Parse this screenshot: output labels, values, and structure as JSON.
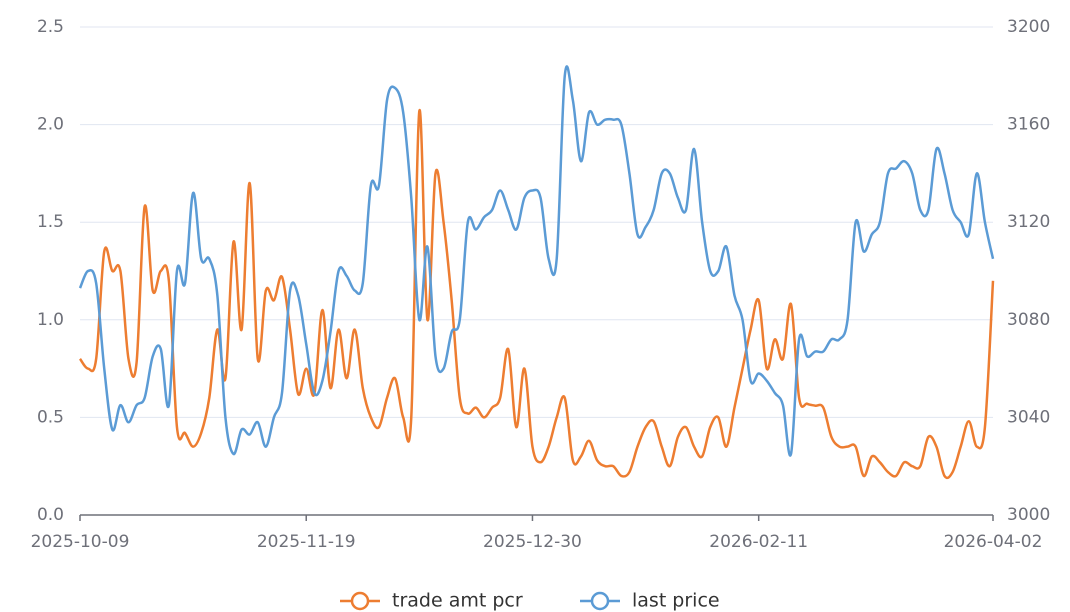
{
  "chart_data": {
    "type": "line",
    "categories": [
      "2025-10-09",
      null,
      null,
      null,
      null,
      null,
      null,
      null,
      null,
      null,
      null,
      null,
      null,
      null,
      null,
      null,
      null,
      null,
      null,
      null,
      null,
      null,
      null,
      null,
      null,
      null,
      null,
      null,
      "2025-11-19",
      null,
      null,
      null,
      null,
      null,
      null,
      null,
      null,
      null,
      null,
      null,
      null,
      null,
      null,
      null,
      null,
      null,
      null,
      null,
      null,
      null,
      null,
      null,
      null,
      null,
      null,
      null,
      "2025-12-30",
      null,
      null,
      null,
      null,
      null,
      null,
      null,
      null,
      null,
      null,
      null,
      null,
      null,
      null,
      null,
      null,
      null,
      null,
      null,
      null,
      null,
      null,
      null,
      null,
      null,
      null,
      null,
      "2026-02-11",
      null,
      null,
      null,
      null,
      null,
      null,
      null,
      null,
      null,
      null,
      null,
      null,
      null,
      null,
      null,
      null,
      null,
      null,
      null,
      null,
      null,
      null,
      null,
      null,
      null,
      null,
      null,
      null,
      "2026-04-02"
    ],
    "series": [
      {
        "name": "trade amt pcr",
        "color": "#ed7d31",
        "axis": "y",
        "values": [
          0.8,
          0.75,
          0.8,
          1.35,
          1.25,
          1.25,
          0.8,
          0.78,
          1.58,
          1.15,
          1.25,
          1.2,
          0.45,
          0.42,
          0.35,
          0.42,
          0.6,
          0.95,
          0.7,
          1.4,
          0.95,
          1.7,
          0.8,
          1.15,
          1.1,
          1.22,
          0.95,
          0.62,
          0.75,
          0.62,
          1.05,
          0.65,
          0.95,
          0.7,
          0.95,
          0.65,
          0.5,
          0.45,
          0.6,
          0.7,
          0.5,
          0.5,
          2.07,
          1.0,
          1.75,
          1.5,
          1.1,
          0.6,
          0.52,
          0.55,
          0.5,
          0.55,
          0.6,
          0.85,
          0.45,
          0.75,
          0.35,
          0.27,
          0.35,
          0.5,
          0.6,
          0.28,
          0.3,
          0.38,
          0.28,
          0.25,
          0.25,
          0.2,
          0.22,
          0.35,
          0.45,
          0.48,
          0.35,
          0.25,
          0.4,
          0.45,
          0.35,
          0.3,
          0.45,
          0.5,
          0.35,
          0.55,
          0.75,
          0.95,
          1.1,
          0.75,
          0.9,
          0.8,
          1.08,
          0.6,
          0.57,
          0.56,
          0.55,
          0.4,
          0.35,
          0.35,
          0.35,
          0.2,
          0.3,
          0.27,
          0.22,
          0.2,
          0.27,
          0.25,
          0.25,
          0.4,
          0.35,
          0.2,
          0.22,
          0.35,
          0.48,
          0.35,
          0.45,
          1.2
        ]
      },
      {
        "name": "last price",
        "color": "#5b9bd5",
        "axis": "y2",
        "values": [
          3093,
          3100,
          3095,
          3060,
          3035,
          3045,
          3038,
          3045,
          3048,
          3065,
          3068,
          3045,
          3100,
          3095,
          3132,
          3105,
          3105,
          3090,
          3040,
          3025,
          3035,
          3033,
          3038,
          3028,
          3040,
          3050,
          3092,
          3090,
          3070,
          3050,
          3055,
          3075,
          3100,
          3098,
          3092,
          3095,
          3135,
          3135,
          3170,
          3175,
          3165,
          3130,
          3080,
          3110,
          3065,
          3060,
          3075,
          3080,
          3120,
          3117,
          3122,
          3125,
          3133,
          3125,
          3117,
          3130,
          3133,
          3130,
          3105,
          3105,
          3180,
          3170,
          3145,
          3165,
          3160,
          3162,
          3162,
          3160,
          3140,
          3115,
          3118,
          3125,
          3140,
          3140,
          3130,
          3125,
          3150,
          3120,
          3100,
          3100,
          3110,
          3090,
          3080,
          3055,
          3058,
          3055,
          3050,
          3045,
          3025,
          3072,
          3065,
          3067,
          3067,
          3072,
          3072,
          3080,
          3120,
          3108,
          3115,
          3120,
          3140,
          3142,
          3145,
          3140,
          3125,
          3125,
          3150,
          3140,
          3125,
          3120,
          3115,
          3140,
          3120,
          3105
        ]
      }
    ],
    "ylim": [
      0,
      2.5
    ],
    "yticks": [
      {
        "value": 0,
        "label": "0.0"
      },
      0.5,
      {
        "value": 1,
        "label": "1.0"
      },
      1.5,
      {
        "value": 2,
        "label": "2.0"
      },
      2.5
    ],
    "y2lim": [
      3000,
      3200
    ],
    "y2ticks": [
      3000,
      3040,
      3080,
      3120,
      3160,
      3200
    ],
    "grid": true,
    "legend": "bottom"
  }
}
